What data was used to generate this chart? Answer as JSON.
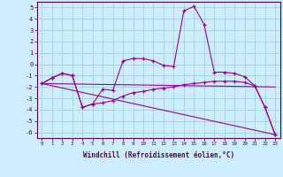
{
  "xlabel": "Windchill (Refroidissement éolien,°C)",
  "bg_color": "#cceeff",
  "line_color": "#990099",
  "grid_color": "#99cccc",
  "xlim": [
    -0.5,
    23.5
  ],
  "ylim": [
    -6.5,
    5.5
  ],
  "yticks": [
    5,
    4,
    3,
    2,
    1,
    0,
    -1,
    -2,
    -3,
    -4,
    -5,
    -6
  ],
  "xticks": [
    0,
    1,
    2,
    3,
    4,
    5,
    6,
    7,
    8,
    9,
    10,
    11,
    12,
    13,
    14,
    15,
    16,
    17,
    18,
    19,
    20,
    21,
    22,
    23
  ],
  "line1_x": [
    0,
    1,
    2,
    3,
    4,
    5,
    6,
    7,
    8,
    9,
    10,
    11,
    12,
    13,
    14,
    15,
    16,
    17,
    18,
    19,
    20,
    21,
    22,
    23
  ],
  "line1_y": [
    -1.7,
    -1.2,
    -0.8,
    -1.0,
    -3.8,
    -3.5,
    -2.2,
    -2.3,
    0.3,
    0.5,
    0.5,
    0.3,
    -0.1,
    -0.2,
    4.7,
    5.1,
    3.5,
    -0.7,
    -0.7,
    -0.8,
    -1.1,
    -1.9,
    -3.8,
    -6.2
  ],
  "line2_x": [
    0,
    1,
    2,
    3,
    4,
    5,
    6,
    7,
    8,
    9,
    10,
    11,
    12,
    13,
    14,
    15,
    16,
    17,
    18,
    19,
    20,
    21,
    22,
    23
  ],
  "line2_y": [
    -1.7,
    -1.2,
    -0.8,
    -1.0,
    -3.8,
    -3.5,
    -3.4,
    -3.2,
    -2.8,
    -2.5,
    -2.4,
    -2.2,
    -2.1,
    -2.0,
    -1.8,
    -1.7,
    -1.6,
    -1.5,
    -1.5,
    -1.5,
    -1.6,
    -1.9,
    -3.8,
    -6.2
  ],
  "line3_x": [
    0,
    23
  ],
  "line3_y": [
    -1.7,
    -2.0
  ],
  "line4_x": [
    0,
    23
  ],
  "line4_y": [
    -1.7,
    -6.2
  ]
}
